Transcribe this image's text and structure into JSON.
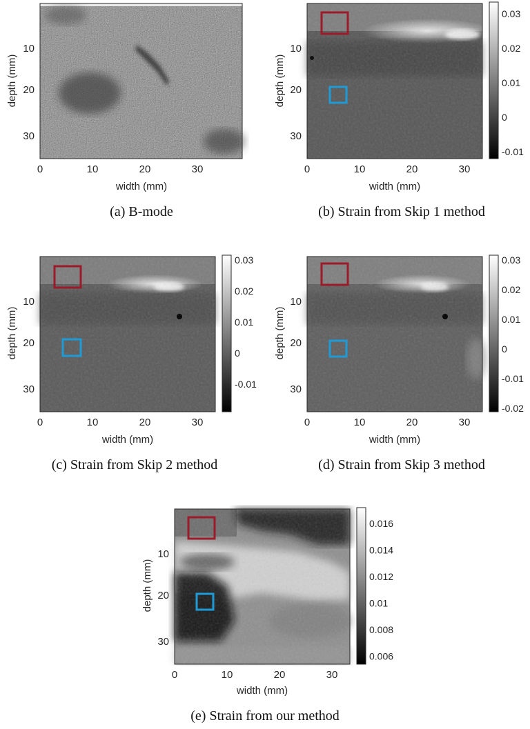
{
  "panels": [
    {
      "id": "a",
      "caption": "(a) B-mode",
      "xlabel": "width (mm)",
      "ylabel": "depth (mm)",
      "xticks": [
        "0",
        "10",
        "20",
        "30"
      ],
      "yticks": [
        "10",
        "20",
        "30"
      ],
      "colorbar": null
    },
    {
      "id": "b",
      "caption": "(b) Strain from Skip 1 method",
      "xlabel": "width (mm)",
      "ylabel": "depth (mm)",
      "xticks": [
        "0",
        "10",
        "20",
        "30"
      ],
      "yticks": [
        "10",
        "20",
        "30"
      ],
      "colorbar": [
        "0.03",
        "0.02",
        "0.01",
        "0",
        "-0.01"
      ]
    },
    {
      "id": "c",
      "caption": "(c) Strain from Skip 2 method",
      "xlabel": "width (mm)",
      "ylabel": "depth (mm)",
      "xticks": [
        "0",
        "10",
        "20",
        "30"
      ],
      "yticks": [
        "10",
        "20",
        "30"
      ],
      "colorbar": [
        "0.03",
        "0.02",
        "0.01",
        "0",
        "-0.01"
      ]
    },
    {
      "id": "d",
      "caption": "(d) Strain from Skip 3 method",
      "xlabel": "width (mm)",
      "ylabel": "depth (mm)",
      "xticks": [
        "0",
        "10",
        "20",
        "30"
      ],
      "yticks": [
        "10",
        "20",
        "30"
      ],
      "colorbar": [
        "0.03",
        "0.02",
        "0.01",
        "0",
        "-0.01",
        "-0.02"
      ]
    },
    {
      "id": "e",
      "caption": "(e) Strain from our method",
      "xlabel": "width (mm)",
      "ylabel": "depth (mm)",
      "xticks": [
        "0",
        "10",
        "20",
        "30"
      ],
      "yticks": [
        "10",
        "20",
        "30"
      ],
      "colorbar": [
        "0.016",
        "0.014",
        "0.012",
        "0.01",
        "0.008",
        "0.006"
      ]
    }
  ],
  "roi_colors": {
    "red": "#9b1b2a",
    "blue": "#1e9bd7"
  }
}
